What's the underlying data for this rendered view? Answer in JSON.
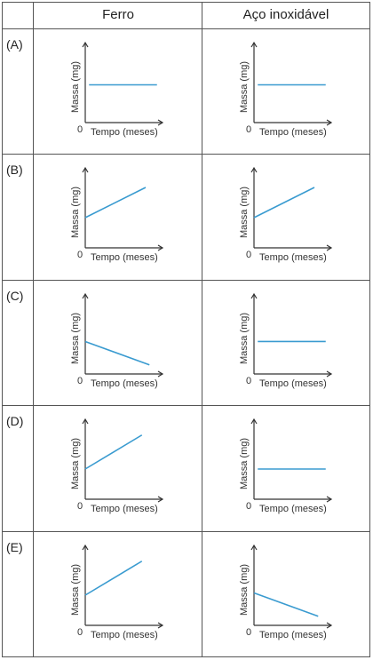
{
  "header": {
    "col_ferro": "Ferro",
    "col_aco": "Aço inoxidável"
  },
  "rows": [
    "(A)",
    "(B)",
    "(C)",
    "(D)",
    "(E)"
  ],
  "axis": {
    "xlabel": "Tempo (meses)",
    "ylabel": "Massa (mg)",
    "origin": "0"
  },
  "colors": {
    "line": "#3a9bd0",
    "axis": "#333333",
    "grid": "#555555"
  },
  "chart_data": [
    {
      "type": "line",
      "row": "(A)",
      "column": "Ferro",
      "xlabel": "Tempo (meses)",
      "ylabel": "Massa (mg)",
      "x": [
        0.05,
        0.95
      ],
      "y": [
        0.5,
        0.5
      ]
    },
    {
      "type": "line",
      "row": "(A)",
      "column": "Aço inoxidável",
      "xlabel": "Tempo (meses)",
      "ylabel": "Massa (mg)",
      "x": [
        0.05,
        0.95
      ],
      "y": [
        0.5,
        0.5
      ]
    },
    {
      "type": "line",
      "row": "(B)",
      "column": "Ferro",
      "xlabel": "Tempo (meses)",
      "ylabel": "Massa (mg)",
      "x": [
        0,
        0.8
      ],
      "y": [
        0.4,
        0.8
      ]
    },
    {
      "type": "line",
      "row": "(B)",
      "column": "Aço inoxidável",
      "xlabel": "Tempo (meses)",
      "ylabel": "Massa (mg)",
      "x": [
        0,
        0.8
      ],
      "y": [
        0.4,
        0.8
      ]
    },
    {
      "type": "line",
      "row": "(C)",
      "column": "Ferro",
      "xlabel": "Tempo (meses)",
      "ylabel": "Massa (mg)",
      "x": [
        0,
        0.85
      ],
      "y": [
        0.43,
        0.12
      ]
    },
    {
      "type": "line",
      "row": "(C)",
      "column": "Aço inoxidável",
      "xlabel": "Tempo (meses)",
      "ylabel": "Massa (mg)",
      "x": [
        0.05,
        0.95
      ],
      "y": [
        0.43,
        0.43
      ]
    },
    {
      "type": "line",
      "row": "(D)",
      "column": "Ferro",
      "xlabel": "Tempo (meses)",
      "ylabel": "Massa (mg)",
      "x": [
        0,
        0.75
      ],
      "y": [
        0.4,
        0.85
      ]
    },
    {
      "type": "line",
      "row": "(D)",
      "column": "Aço inoxidável",
      "xlabel": "Tempo (meses)",
      "ylabel": "Massa (mg)",
      "x": [
        0.05,
        0.95
      ],
      "y": [
        0.4,
        0.4
      ]
    },
    {
      "type": "line",
      "row": "(E)",
      "column": "Ferro",
      "xlabel": "Tempo (meses)",
      "ylabel": "Massa (mg)",
      "x": [
        0,
        0.75
      ],
      "y": [
        0.4,
        0.85
      ]
    },
    {
      "type": "line",
      "row": "(E)",
      "column": "Aço inoxidável",
      "xlabel": "Tempo (meses)",
      "ylabel": "Massa (mg)",
      "x": [
        0,
        0.85
      ],
      "y": [
        0.43,
        0.12
      ]
    }
  ]
}
